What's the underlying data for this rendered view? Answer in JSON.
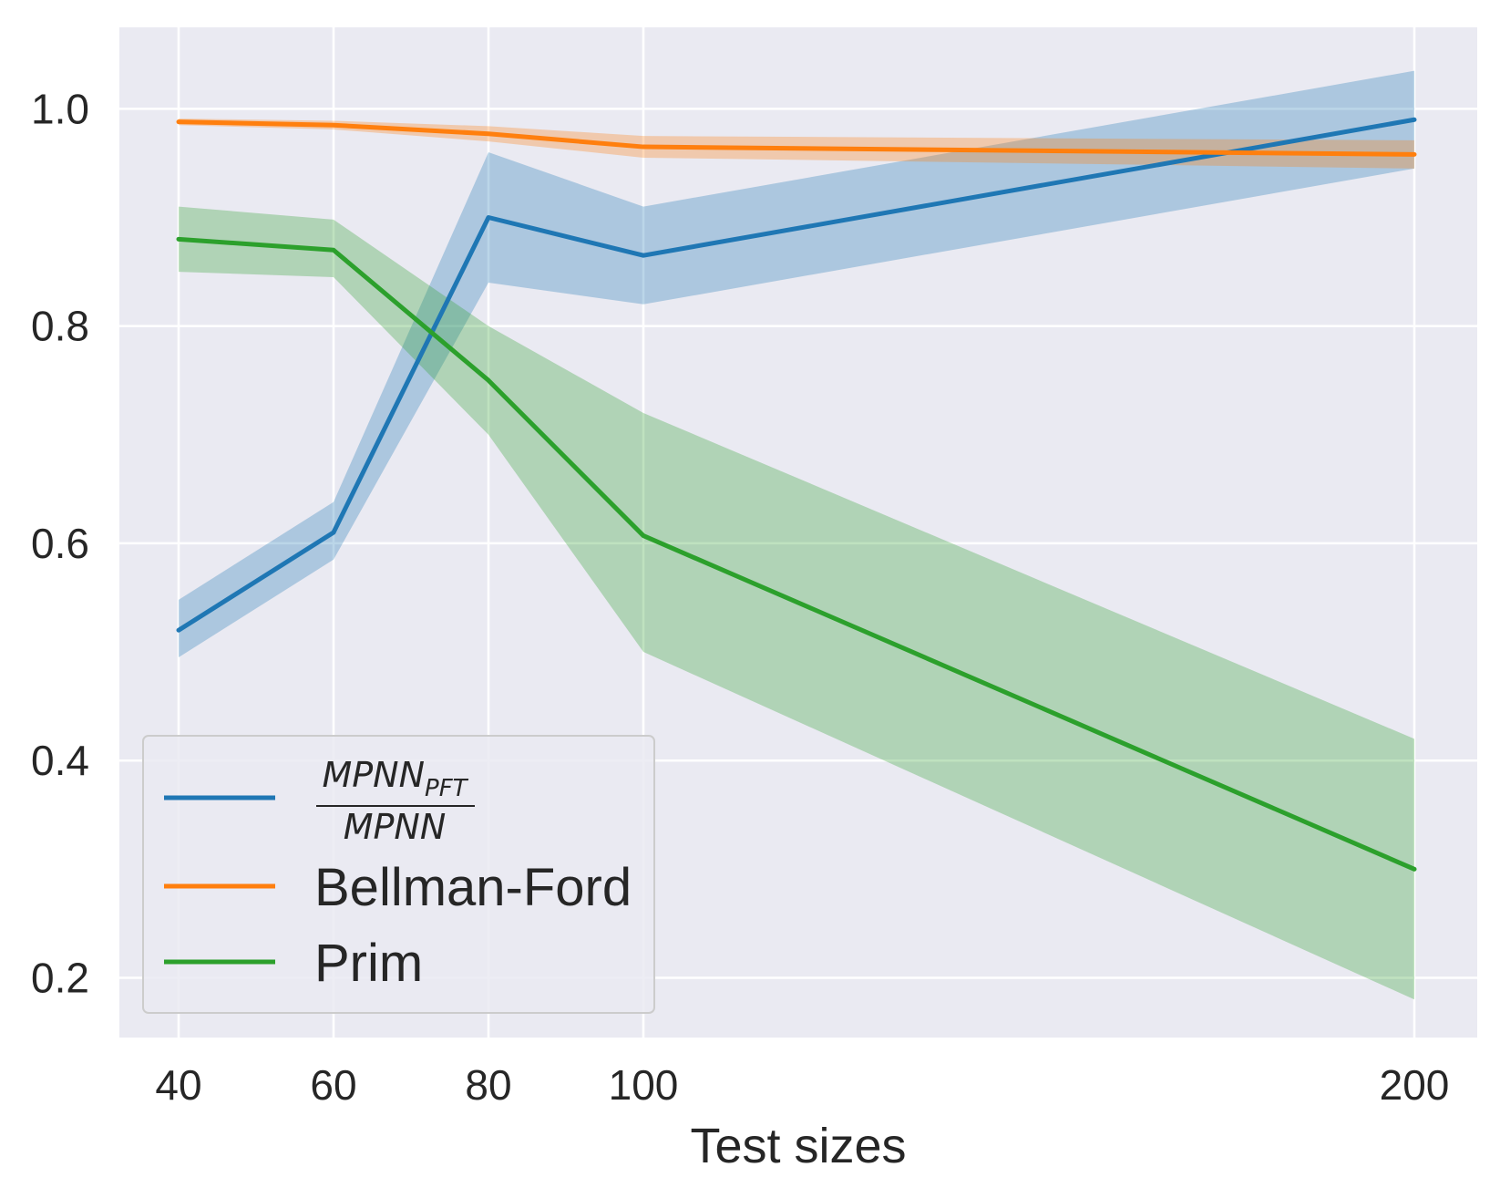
{
  "chart_data": {
    "type": "line",
    "title": "",
    "xlabel": "Test sizes",
    "ylabel": "",
    "x_ticks": [
      "40",
      "60",
      "80",
      "100",
      "200"
    ],
    "x_scale": "categorical-unequal",
    "y_ticks": [
      "0.2",
      "0.4",
      "0.6",
      "0.8",
      "1.0"
    ],
    "ylim": [
      0.145,
      1.075
    ],
    "grid": true,
    "legend_position": "lower-left",
    "series": [
      {
        "name_numerator": "MPNN",
        "name_numerator_sub": "PFT",
        "name_denominator": "MPNN",
        "color": "#1f77b4",
        "x": [
          40,
          60,
          80,
          100,
          200
        ],
        "y": [
          0.52,
          0.61,
          0.9,
          0.865,
          0.99
        ],
        "y_lower": [
          0.495,
          0.585,
          0.84,
          0.82,
          0.945
        ],
        "y_upper": [
          0.548,
          0.638,
          0.96,
          0.91,
          1.035
        ]
      },
      {
        "name": "Bellman-Ford",
        "color": "#ff7f0e",
        "x": [
          40,
          60,
          80,
          100,
          200
        ],
        "y": [
          0.988,
          0.985,
          0.977,
          0.965,
          0.958
        ],
        "y_lower": [
          0.985,
          0.981,
          0.97,
          0.955,
          0.945
        ],
        "y_upper": [
          0.991,
          0.989,
          0.984,
          0.975,
          0.971
        ]
      },
      {
        "name": "Prim",
        "color": "#2ca02c",
        "x": [
          40,
          60,
          80,
          100,
          200
        ],
        "y": [
          0.88,
          0.87,
          0.75,
          0.607,
          0.3
        ],
        "y_lower": [
          0.85,
          0.845,
          0.7,
          0.5,
          0.18
        ],
        "y_upper": [
          0.91,
          0.898,
          0.8,
          0.72,
          0.42
        ]
      }
    ]
  }
}
